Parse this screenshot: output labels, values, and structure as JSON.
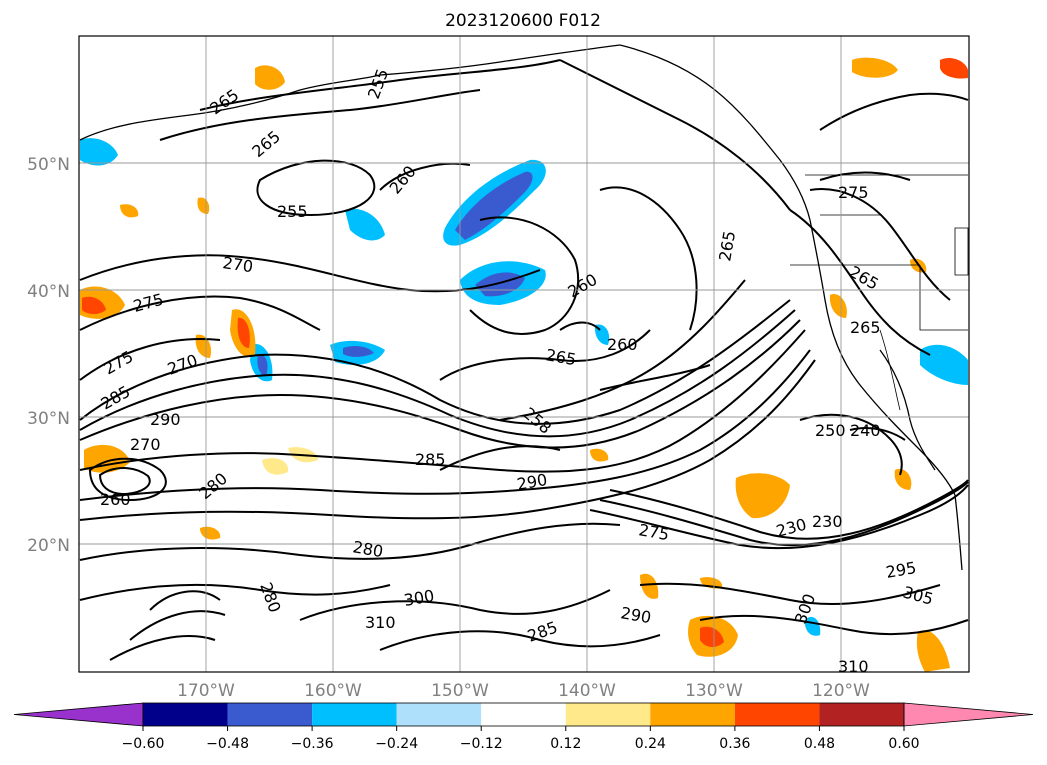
{
  "title": "2023120600 F012",
  "map": {
    "lat_labels": [
      "50°N",
      "40°N",
      "30°N",
      "20°N"
    ],
    "lat_values": [
      50,
      40,
      30,
      20
    ],
    "lon_labels": [
      "170°W",
      "160°W",
      "150°W",
      "140°W",
      "130°W",
      "120°W"
    ],
    "lon_values": [
      -170,
      -160,
      -150,
      -140,
      -130,
      -120
    ],
    "extent": {
      "lon_min": -180,
      "lon_max": -110,
      "lat_min": 10,
      "lat_max": 60
    }
  },
  "contour_labels": [
    "265",
    "255",
    "265",
    "260",
    "255",
    "270",
    "275",
    "275",
    "270",
    "285",
    "290",
    "270",
    "260",
    "280",
    "260",
    "265",
    "260",
    "258",
    "285",
    "290",
    "280",
    "275",
    "230",
    "230",
    "250",
    "240",
    "295",
    "305",
    "300",
    "310",
    "300",
    "290",
    "285",
    "280",
    "310",
    "275",
    "265",
    "265",
    "265"
  ],
  "colorbar": {
    "ticks": [
      "−0.60",
      "−0.48",
      "−0.36",
      "−0.24",
      "−0.12",
      "0.12",
      "0.24",
      "0.36",
      "0.48",
      "0.60"
    ],
    "colors": [
      "#9932cc",
      "#00008b",
      "#3a5bcf",
      "#00bfff",
      "#aee0fb",
      "#ffffff",
      "#ffe98a",
      "#ffa500",
      "#ff4500",
      "#b22222",
      "#ff88b0"
    ]
  }
}
